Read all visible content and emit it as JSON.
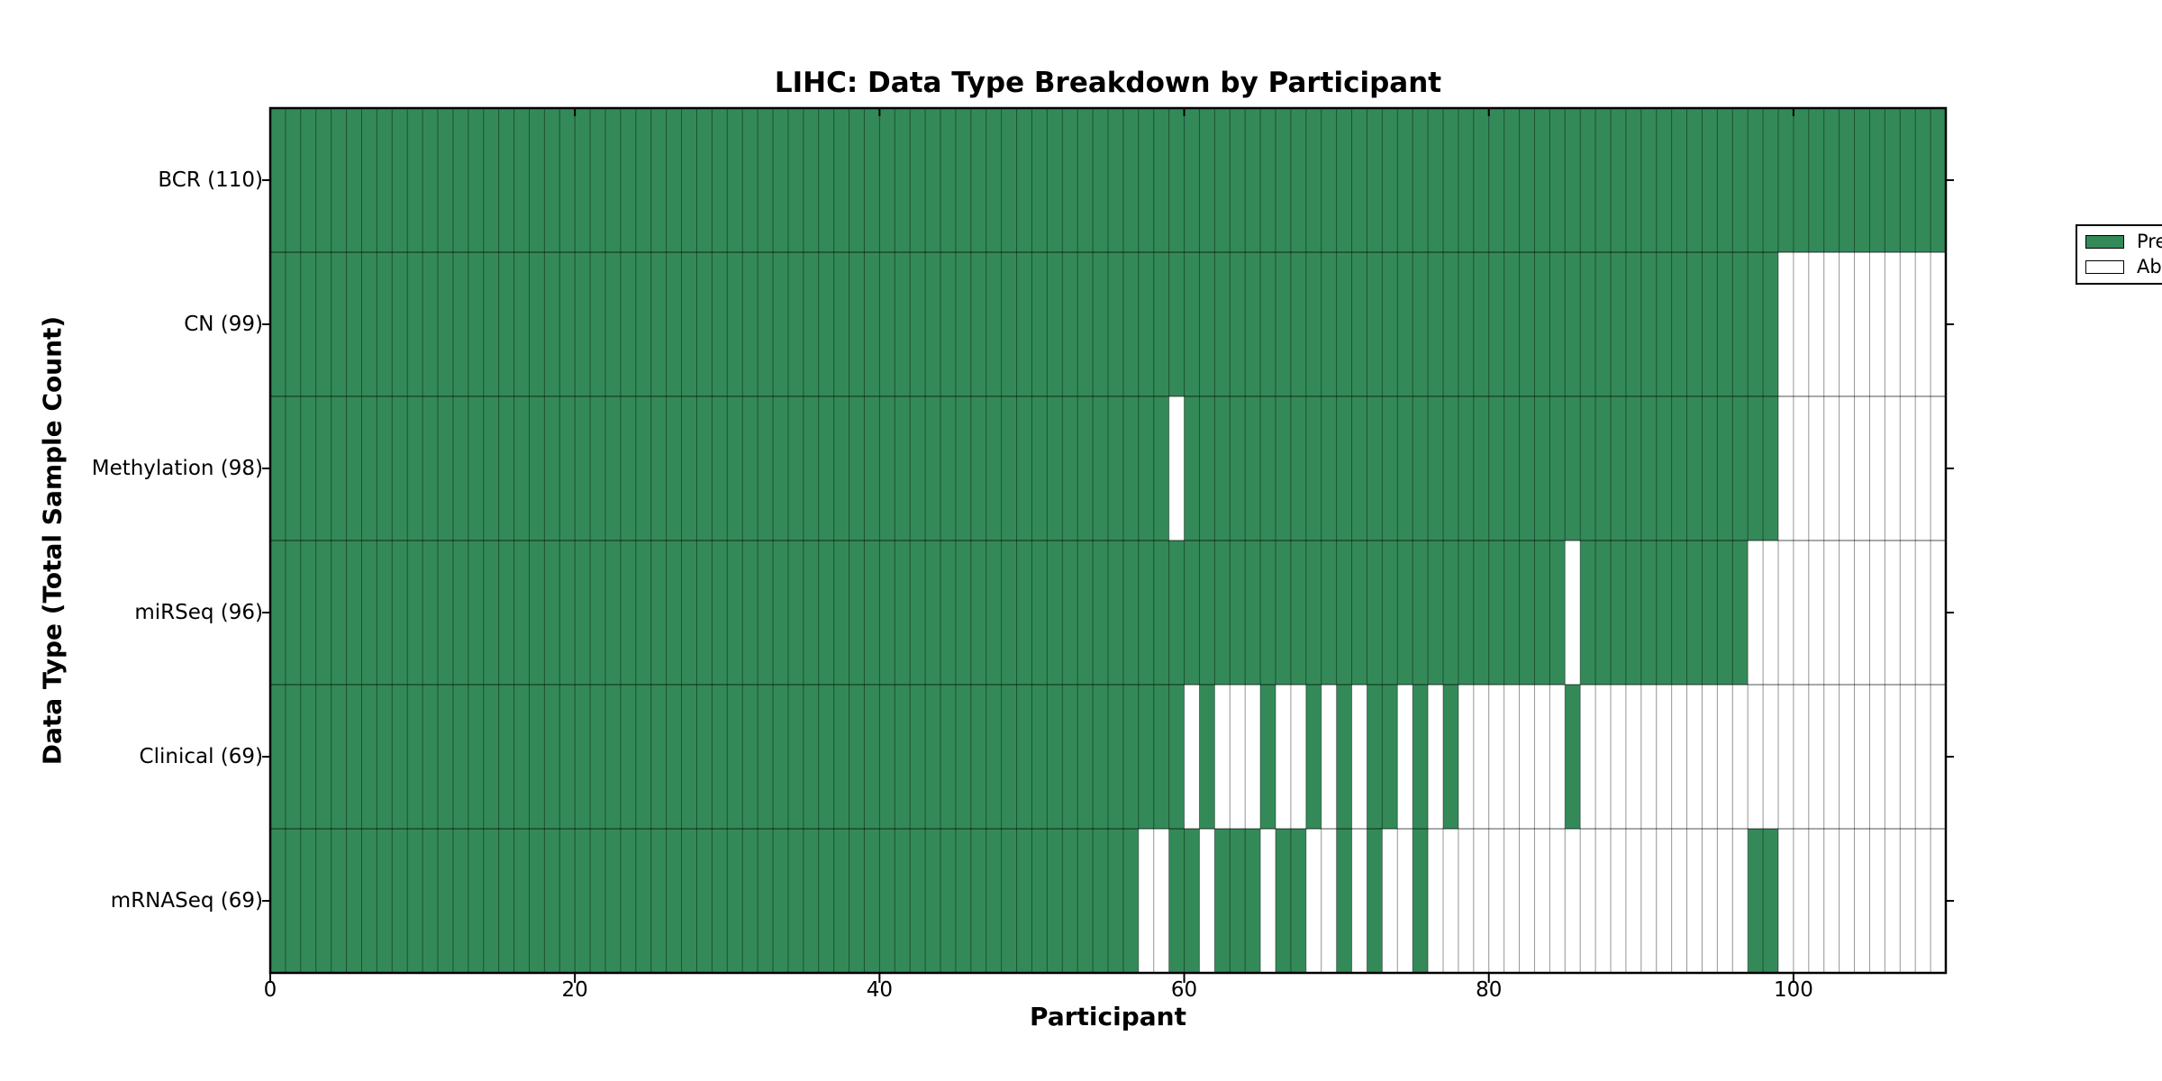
{
  "chart_data": {
    "type": "heatmap",
    "title": "LIHC: Data Type Breakdown by Participant",
    "xlabel": "Participant",
    "ylabel": "Data Type (Total Sample Count)",
    "x_ticks": [
      0,
      20,
      40,
      60,
      80,
      100
    ],
    "xlim": [
      0,
      110
    ],
    "n_participants": 110,
    "grid": true,
    "legend_position": "upper right",
    "legend": [
      {
        "label": "Present",
        "color": "#338a58"
      },
      {
        "label": "Absent",
        "color": "#ffffff"
      }
    ],
    "colors": {
      "present": "#338a58",
      "absent": "#ffffff",
      "gridline": "rgba(0,0,0,0.42)",
      "row_separator": "rgba(0,0,0,0.55)",
      "border": "#000000"
    },
    "rows": [
      {
        "name": "BCR",
        "label": "BCR (110)",
        "total_samples": 110,
        "absent_ranges": []
      },
      {
        "name": "CN",
        "label": "CN (99)",
        "total_samples": 99,
        "absent_ranges": [
          [
            99,
            109
          ]
        ]
      },
      {
        "name": "Methylation",
        "label": "Methylation (98)",
        "total_samples": 98,
        "absent_ranges": [
          [
            59,
            59
          ],
          [
            99,
            109
          ]
        ]
      },
      {
        "name": "miRSeq",
        "label": "miRSeq (96)",
        "total_samples": 96,
        "absent_ranges": [
          [
            85,
            85
          ],
          [
            97,
            109
          ]
        ]
      },
      {
        "name": "Clinical",
        "label": "Clinical (69)",
        "total_samples": 69,
        "absent_ranges": [
          [
            60,
            60
          ],
          [
            62,
            64
          ],
          [
            66,
            67
          ],
          [
            69,
            69
          ],
          [
            71,
            71
          ],
          [
            74,
            74
          ],
          [
            76,
            76
          ],
          [
            78,
            84
          ],
          [
            86,
            109
          ]
        ]
      },
      {
        "name": "mRNASeq",
        "label": "mRNASeq (69)",
        "total_samples": 69,
        "absent_ranges": [
          [
            57,
            58
          ],
          [
            61,
            61
          ],
          [
            65,
            65
          ],
          [
            68,
            69
          ],
          [
            71,
            71
          ],
          [
            73,
            74
          ],
          [
            76,
            96
          ],
          [
            99,
            109
          ]
        ]
      }
    ]
  }
}
